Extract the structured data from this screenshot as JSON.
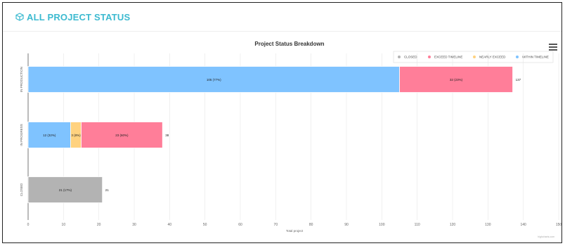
{
  "header": {
    "title": "ALL PROJECT STATUS",
    "icon": "cube-icon",
    "accent": "#3cbad0"
  },
  "credit": "highcharts.com",
  "chart_data": {
    "type": "bar",
    "stacked": true,
    "orientation": "horizontal",
    "title": "Project Status Breakdown",
    "xlabel": "Total project",
    "ylabel": "",
    "xlim": [
      0,
      150
    ],
    "ticks": [
      0,
      10,
      20,
      30,
      40,
      50,
      60,
      70,
      80,
      90,
      100,
      110,
      120,
      130,
      140,
      150
    ],
    "grid": true,
    "legend_position": "top-right",
    "categories": [
      "IN PRODUCTION",
      "IN PROGRESS",
      "CLOSED"
    ],
    "series": [
      {
        "name": "CLOSED",
        "color": "#b3b3b3",
        "values": [
          0,
          0,
          21
        ],
        "labels": [
          "",
          "",
          "21 (17%)"
        ]
      },
      {
        "name": "EXCEED TIMELINE",
        "color": "#ff7e99",
        "values": [
          32,
          23,
          0
        ],
        "labels": [
          "32 (23%)",
          "23 (60%)",
          ""
        ]
      },
      {
        "name": "NEARLY EXCEED",
        "color": "#ffd27f",
        "values": [
          0,
          3,
          0
        ],
        "labels": [
          "",
          "3 (8%)",
          ""
        ]
      },
      {
        "name": "WITHIN TIMELINE",
        "color": "#7fc3ff",
        "values": [
          105,
          12,
          0
        ],
        "labels": [
          "105 (77%)",
          "12 (32%)",
          ""
        ]
      }
    ],
    "stack_order": [
      "WITHIN TIMELINE",
      "NEARLY EXCEED",
      "EXCEED TIMELINE",
      "CLOSED"
    ],
    "totals": [
      137,
      38,
      21
    ]
  }
}
